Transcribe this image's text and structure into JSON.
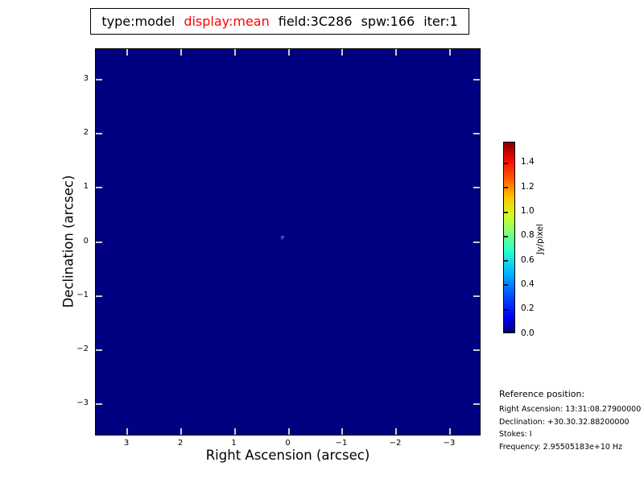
{
  "figure": {
    "title_parts": [
      {
        "text": "type:model",
        "color": "#000000"
      },
      {
        "text": "display:mean",
        "color": "#ff0000"
      },
      {
        "text": "field:3C286",
        "color": "#000000"
      },
      {
        "text": "spw:166",
        "color": "#000000"
      },
      {
        "text": "iter:1",
        "color": "#000000"
      }
    ]
  },
  "axes": {
    "xlabel": "Right Ascension (arcsec)",
    "ylabel": "Declination (arcsec)",
    "x_tick_labels": [
      "3",
      "2",
      "1",
      "0",
      "−1",
      "−2",
      "−3"
    ],
    "y_tick_labels": [
      "3",
      "2",
      "1",
      "0",
      "−1",
      "−2",
      "−3"
    ]
  },
  "colorbar": {
    "label": "Jy/pixel",
    "tick_labels": [
      "0.0",
      "0.2",
      "0.4",
      "0.6",
      "0.8",
      "1.0",
      "1.2",
      "1.4"
    ]
  },
  "reference": {
    "heading": "Reference position:",
    "lines": [
      "Right Ascension: 13:31:08.27900000",
      "Declination: +30.30.32.88200000",
      "Stokes: I",
      "Frequency: 2.95505183e+10 Hz"
    ]
  },
  "colors": {
    "plot_background": "#000080",
    "title_highlight": "#ff0000",
    "plot_tick": "#cccccc",
    "point_source_blue": "#2a4fe4",
    "point_source_maroon": "#7c1f28"
  },
  "chart_data": {
    "type": "heatmap",
    "title": "type:model display:mean field:3C286 spw:166 iter:1",
    "xlabel": "Right Ascension (arcsec)",
    "ylabel": "Declination (arcsec)",
    "x_ticks": [
      3,
      2,
      1,
      0,
      -1,
      -2,
      -3
    ],
    "y_ticks": [
      3,
      2,
      1,
      0,
      -1,
      -2,
      -3
    ],
    "xlim": [
      3.6,
      -3.6
    ],
    "ylim": [
      -3.6,
      3.6
    ],
    "x_axis_inverted": true,
    "grid": false,
    "colormap": "jet",
    "colorbar_label": "Jy/pixel",
    "colorbar_ticks": [
      0.0,
      0.2,
      0.4,
      0.6,
      0.8,
      1.0,
      1.2,
      1.4
    ],
    "value_range": [
      0.0,
      1.57
    ],
    "background_value": 0.0,
    "features": [
      {
        "type": "point-source",
        "x_arcsec": 0.12,
        "y_arcsec": 0.1,
        "approx_display_value": 0.3,
        "note": "single small blue pixel cluster near field center; rest of image is 0.0 (dark navy)"
      }
    ]
  }
}
